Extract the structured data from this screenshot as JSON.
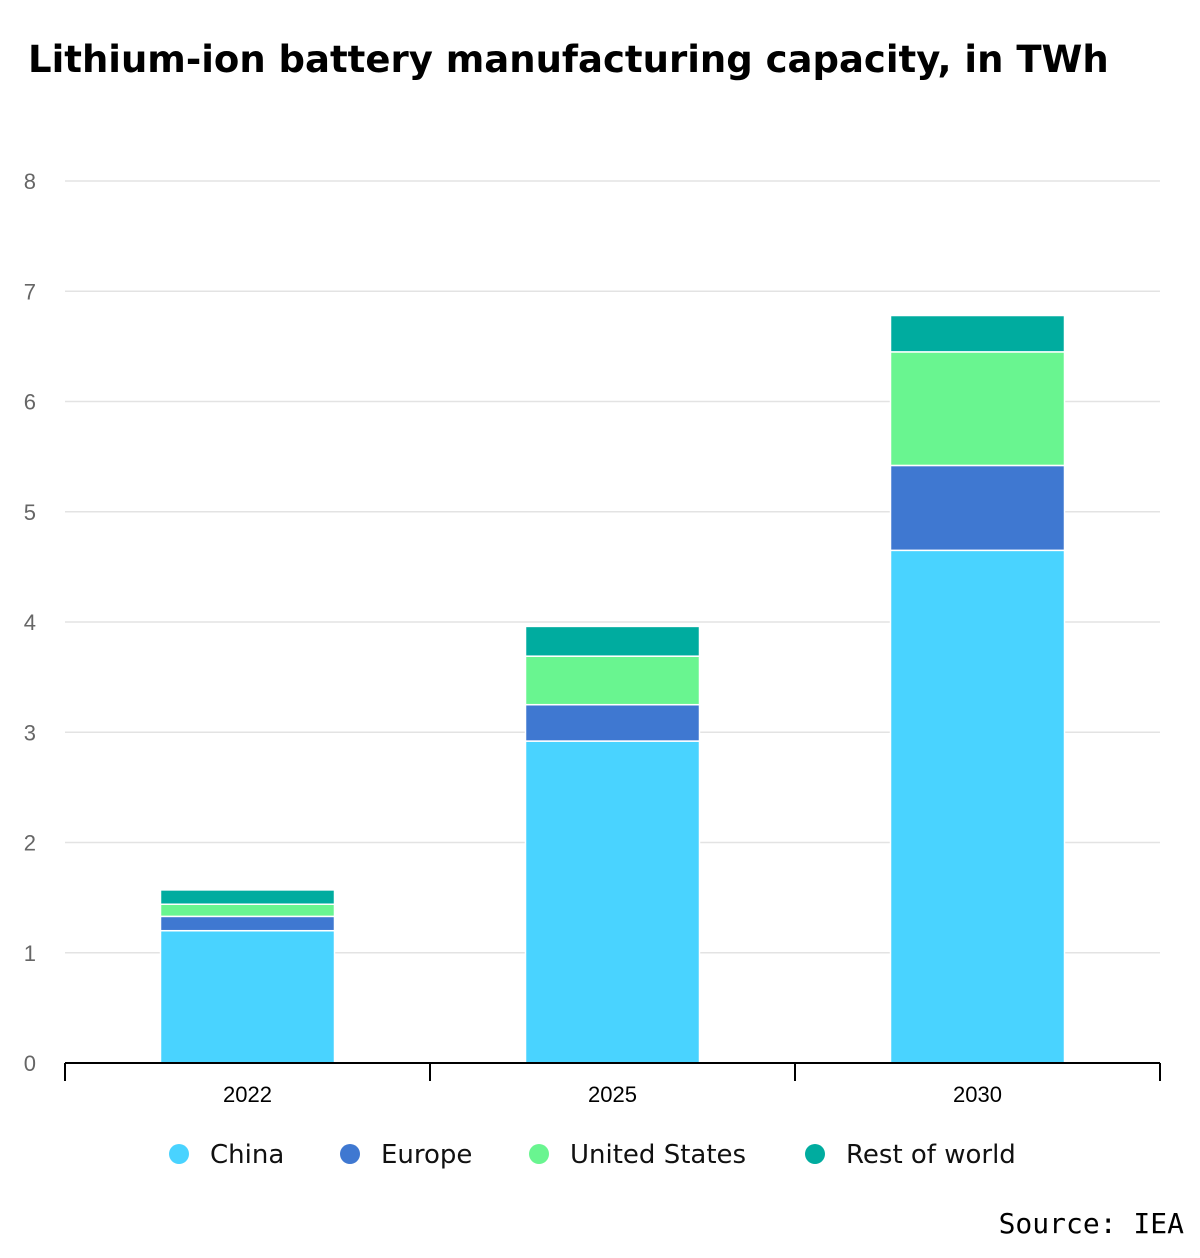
{
  "chart_data": {
    "type": "bar",
    "stacked": true,
    "title": "Lithium-ion battery manufacturing capacity, in TWh",
    "categories": [
      "2022",
      "2025",
      "2030"
    ],
    "series": [
      {
        "name": "China",
        "color": "#49D3FF",
        "values": [
          1.2,
          2.92,
          4.65
        ]
      },
      {
        "name": "Europe",
        "color": "#3F78D1",
        "values": [
          0.13,
          0.33,
          0.77
        ]
      },
      {
        "name": "United States",
        "color": "#69F590",
        "values": [
          0.11,
          0.44,
          1.03
        ]
      },
      {
        "name": "Rest of world",
        "color": "#00AC9F",
        "values": [
          0.13,
          0.27,
          0.33
        ]
      }
    ],
    "ylim": [
      0,
      8
    ],
    "yticks": [
      0,
      1,
      2,
      3,
      4,
      5,
      6,
      7,
      8
    ],
    "grid": true,
    "legend_position": "bottom"
  },
  "source": "Source: IEA"
}
